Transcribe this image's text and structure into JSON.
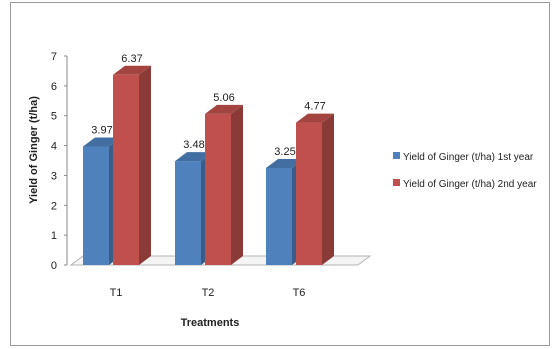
{
  "chart_data": {
    "type": "bar",
    "categories": [
      "T1",
      "T2",
      "T6"
    ],
    "series": [
      {
        "name": "Yield of Ginger (t/ha) 1st year",
        "values": [
          3.97,
          3.48,
          3.25
        ],
        "color": "#4f81bd"
      },
      {
        "name": "Yield of Ginger (t/ha) 2nd year",
        "values": [
          6.37,
          5.06,
          4.77
        ],
        "color": "#c0504d"
      }
    ],
    "data_labels": [
      [
        "3.97",
        "3.48",
        "3.25"
      ],
      [
        "6.37",
        "5.06",
        "4.77"
      ]
    ],
    "title": "",
    "xlabel": "Treatments",
    "ylabel": "Yield of Ginger (t/ha)",
    "yticks": [
      "0",
      "1",
      "2",
      "3",
      "4",
      "5",
      "6",
      "7"
    ],
    "ylim": [
      0,
      7
    ],
    "grid": false,
    "legend_position": "right",
    "style": "3d-clustered-column"
  }
}
